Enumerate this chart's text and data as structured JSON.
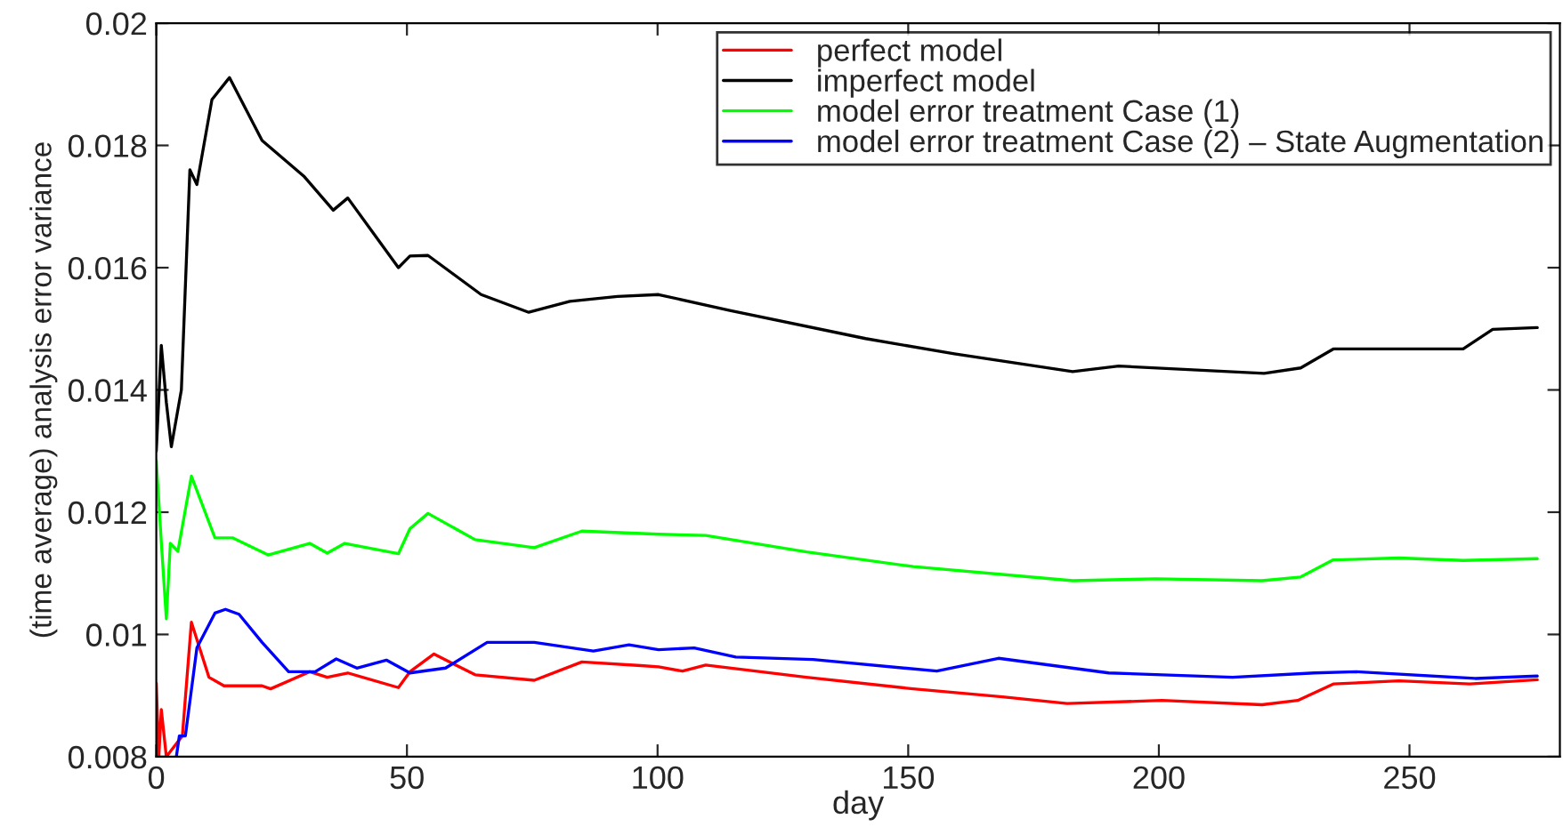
{
  "chart_data": {
    "type": "line",
    "xlabel": "day",
    "ylabel": "(time average) analysis error variance",
    "xlim": [
      0,
      280
    ],
    "xticks": [
      0,
      50,
      100,
      150,
      200,
      250
    ],
    "ylim": [
      0.008,
      0.02
    ],
    "yticks": [
      0.008,
      0.01,
      0.012,
      0.014,
      0.016,
      0.018,
      0.02
    ],
    "grid": false,
    "legend": "top right",
    "marker": "none",
    "line_style": "solid",
    "series": [
      {
        "name": "perfect model",
        "color": "#ff0000",
        "x": [
          0,
          0.5,
          1,
          2,
          5.2,
          7,
          10.5,
          13.5,
          21.1,
          22.8,
          30.6,
          34.1,
          38.2,
          48.3,
          50.6,
          55.4,
          63.6,
          75.4,
          84.9,
          96.7,
          100.2,
          105,
          109.6,
          129.7,
          151,
          168.8,
          181.7,
          200.6,
          220.6,
          227.7,
          234.8,
          247.9,
          262,
          275.5
        ],
        "values": [
          0.0092,
          0.008,
          0.00877,
          0.008,
          0.00834,
          0.0102,
          0.0093,
          0.00916,
          0.00916,
          0.00911,
          0.00939,
          0.0093,
          0.00937,
          0.00913,
          0.00939,
          0.00968,
          0.00934,
          0.00925,
          0.00955,
          0.00949,
          0.00947,
          0.0094,
          0.0095,
          0.0093,
          0.00911,
          0.00898,
          0.00887,
          0.00892,
          0.00885,
          0.00892,
          0.00919,
          0.00924,
          0.00919,
          0.00926
        ]
      },
      {
        "name": "imperfect model",
        "color": "#000000",
        "x": [
          0,
          1,
          2,
          3,
          5,
          6.7,
          8.1,
          11.1,
          14.6,
          21.1,
          29.4,
          35.3,
          38.2,
          48.3,
          50.6,
          54.2,
          64.8,
          74.3,
          82.5,
          92,
          100.2,
          114.4,
          141.5,
          159.2,
          182.8,
          192,
          221,
          228.3,
          234.8,
          260.7,
          266.6,
          275.5
        ],
        "values": [
          0.013,
          0.01473,
          0.0138,
          0.01307,
          0.014,
          0.0176,
          0.01736,
          0.01875,
          0.01911,
          0.01808,
          0.0175,
          0.01694,
          0.01714,
          0.016,
          0.01619,
          0.0162,
          0.01556,
          0.01527,
          0.01545,
          0.01553,
          0.01556,
          0.0153,
          0.01484,
          0.01459,
          0.0143,
          0.01439,
          0.01427,
          0.01436,
          0.01467,
          0.01467,
          0.01499,
          0.01502
        ]
      },
      {
        "name": "model error treatment Case (1)",
        "color": "#00ff00",
        "x": [
          0,
          1,
          2,
          2.8,
          4.3,
          7,
          11.7,
          15.2,
          22.3,
          30.6,
          34.1,
          37.6,
          48.3,
          50.6,
          54.2,
          63.6,
          75.4,
          84.9,
          100.2,
          109.6,
          129.7,
          151,
          182.8,
          199.4,
          220.6,
          228.3,
          234.8,
          247.9,
          260.7,
          275.5
        ],
        "values": [
          0.01284,
          0.01151,
          0.01026,
          0.01149,
          0.01136,
          0.01259,
          0.01158,
          0.01158,
          0.0113,
          0.01149,
          0.01133,
          0.01149,
          0.01132,
          0.01173,
          0.01198,
          0.01155,
          0.01142,
          0.01169,
          0.01164,
          0.01162,
          0.01135,
          0.01111,
          0.01088,
          0.01091,
          0.01088,
          0.01094,
          0.01122,
          0.01125,
          0.01121,
          0.01124
        ]
      },
      {
        "name": "model error treatment Case (2) – State Augmentation",
        "color": "#0000ff",
        "x": [
          4,
          4.6,
          5.8,
          8.1,
          11.7,
          13.8,
          16.5,
          21.1,
          26.4,
          31.7,
          35.9,
          40,
          45.9,
          50.6,
          57.7,
          66,
          75.4,
          87.2,
          94.3,
          100.2,
          107.3,
          115.6,
          131,
          155.7,
          168,
          190,
          214.7,
          231,
          239.4,
          263.1,
          275.5
        ],
        "values": [
          0.008,
          0.00834,
          0.00834,
          0.00978,
          0.01035,
          0.01041,
          0.01033,
          0.00987,
          0.00939,
          0.00939,
          0.0096,
          0.00945,
          0.00958,
          0.00937,
          0.00945,
          0.00987,
          0.00987,
          0.00973,
          0.00983,
          0.00975,
          0.00978,
          0.00963,
          0.00959,
          0.0094,
          0.00961,
          0.00937,
          0.0093,
          0.00937,
          0.00939,
          0.00928,
          0.00932
        ]
      }
    ]
  }
}
